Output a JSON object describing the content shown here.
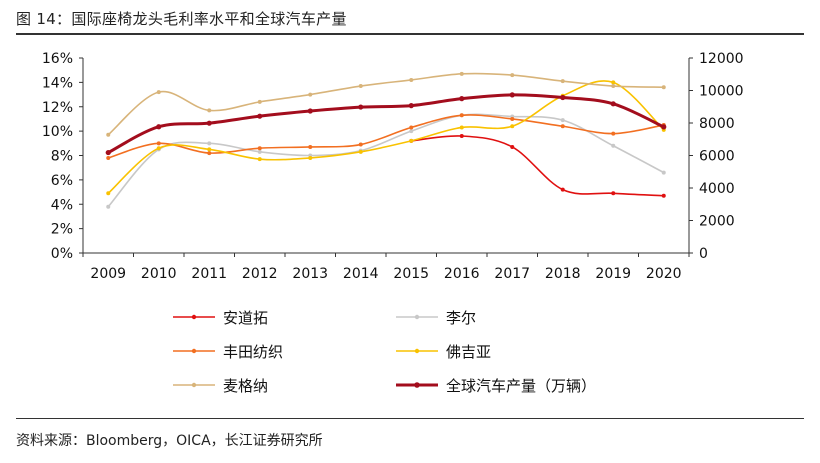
{
  "title": "图 14：国际座椅龙头毛利率水平和全球汽车产量",
  "source": "资料来源：Bloomberg，OICA，长江证券研究所",
  "chart_data": {
    "type": "line",
    "x": [
      "2009",
      "2010",
      "2011",
      "2012",
      "2013",
      "2014",
      "2015",
      "2016",
      "2017",
      "2018",
      "2019",
      "2020"
    ],
    "y_left_ticks": [
      "0%",
      "2%",
      "4%",
      "6%",
      "8%",
      "10%",
      "12%",
      "14%",
      "16%"
    ],
    "y_right_ticks": [
      "0",
      "2000",
      "4000",
      "6000",
      "8000",
      "10000",
      "12000"
    ],
    "ylim_left": [
      0,
      16
    ],
    "ylim_right": [
      0,
      12000
    ],
    "legend_placement": "bottom",
    "series": [
      {
        "name": "安道拓",
        "axis": "left",
        "color": "#e01010",
        "width": 1.6,
        "values": [
          null,
          null,
          null,
          null,
          null,
          null,
          9.2,
          9.6,
          8.7,
          5.2,
          4.9,
          4.7
        ]
      },
      {
        "name": "李尔",
        "axis": "left",
        "color": "#c8c8c8",
        "width": 1.6,
        "values": [
          3.8,
          8.5,
          9.0,
          8.3,
          8.0,
          8.4,
          10.0,
          11.3,
          11.2,
          10.9,
          8.8,
          6.6
        ]
      },
      {
        "name": "丰田纺织",
        "axis": "left",
        "color": "#f26f21",
        "width": 1.6,
        "values": [
          7.8,
          9.0,
          8.2,
          8.6,
          8.7,
          8.9,
          10.3,
          11.3,
          11.0,
          10.4,
          9.8,
          10.5
        ]
      },
      {
        "name": "佛吉亚",
        "axis": "left",
        "color": "#f9c200",
        "width": 1.6,
        "values": [
          4.9,
          8.6,
          8.5,
          7.7,
          7.8,
          8.3,
          9.2,
          10.3,
          10.4,
          12.9,
          14.0,
          10.1
        ]
      },
      {
        "name": "麦格纳",
        "axis": "left",
        "color": "#d8b47a",
        "width": 1.6,
        "values": [
          9.7,
          13.2,
          11.7,
          12.4,
          13.0,
          13.7,
          14.2,
          14.7,
          14.6,
          14.1,
          13.7,
          13.6
        ]
      },
      {
        "name": "全球汽车产量（万辆）",
        "axis": "right",
        "color": "#a30d1d",
        "width": 3.0,
        "values": [
          6180,
          7770,
          7990,
          8420,
          8740,
          8980,
          9070,
          9500,
          9730,
          9570,
          9180,
          7760
        ]
      }
    ]
  }
}
